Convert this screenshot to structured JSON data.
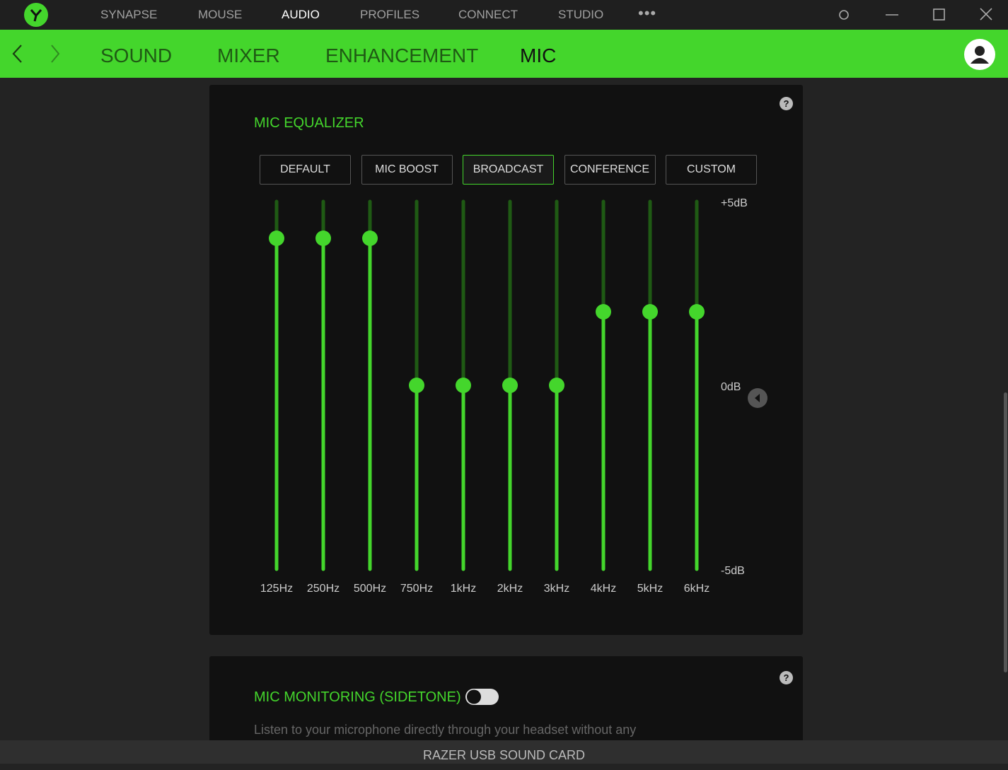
{
  "titlebar": {
    "nav": [
      "SYNAPSE",
      "MOUSE",
      "AUDIO",
      "PROFILES",
      "CONNECT",
      "STUDIO"
    ]
  },
  "tabs": [
    "SOUND",
    "MIXER",
    "ENHANCEMENT",
    "MIC"
  ],
  "equalizer": {
    "title": "MIC EQUALIZER",
    "presets": [
      "DEFAULT",
      "MIC BOOST",
      "BROADCAST",
      "CONFERENCE",
      "CUSTOM"
    ],
    "bands": [
      "125Hz",
      "250Hz",
      "500Hz",
      "750Hz",
      "1kHz",
      "2kHz",
      "3kHz",
      "4kHz",
      "5kHz",
      "6kHz"
    ],
    "values": [
      4,
      4,
      4,
      0,
      0,
      0,
      0,
      2,
      2,
      2
    ],
    "ylim": [
      -5,
      5
    ],
    "yticks": [
      {
        "value": 5,
        "label": "+5dB"
      },
      {
        "value": 0,
        "label": "0dB"
      },
      {
        "value": -5,
        "label": "-5dB"
      }
    ],
    "color": "#44d62c"
  },
  "monitoring": {
    "title": "MIC MONITORING (SIDETONE)",
    "description": "Listen to your microphone directly through your headset without any"
  },
  "footer": "RAZER USB SOUND CARD"
}
